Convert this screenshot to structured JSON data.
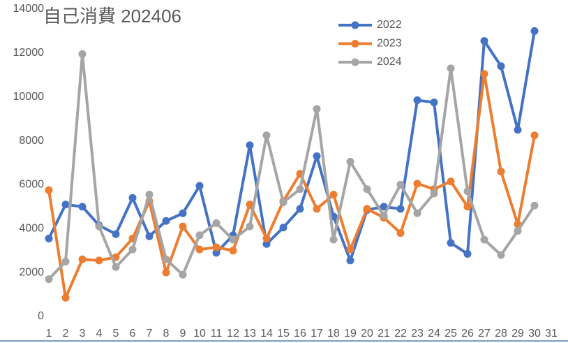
{
  "chart_data": {
    "type": "line",
    "title": "自己消費 202406",
    "categories": [
      "1",
      "2",
      "3",
      "4",
      "5",
      "6",
      "7",
      "8",
      "9",
      "10",
      "11",
      "12",
      "13",
      "14",
      "15",
      "16",
      "17",
      "18",
      "19",
      "20",
      "21",
      "22",
      "23",
      "24",
      "25",
      "26",
      "27",
      "28",
      "29",
      "30",
      "31"
    ],
    "series": [
      {
        "name": "2022",
        "color": "#4472c4",
        "values": [
          3550,
          5100,
          5000,
          4150,
          3750,
          5400,
          3650,
          4350,
          4700,
          5950,
          2900,
          3700,
          7800,
          3300,
          4050,
          4900,
          7300,
          4550,
          2550,
          4850,
          5000,
          4900,
          9850,
          9750,
          3350,
          2850,
          12550,
          11400,
          8500,
          13000,
          null
        ]
      },
      {
        "name": "2023",
        "color": "#ed7d31",
        "values": [
          5750,
          850,
          2600,
          2550,
          2700,
          3550,
          5250,
          2000,
          4100,
          3050,
          3150,
          3000,
          5100,
          3550,
          5250,
          6500,
          4900,
          5550,
          3050,
          4900,
          4500,
          3800,
          6050,
          5800,
          6150,
          5000,
          11050,
          6600,
          4200,
          8250,
          null
        ]
      },
      {
        "name": "2024",
        "color": "#a5a5a5",
        "values": [
          1700,
          2500,
          11950,
          4100,
          2250,
          3050,
          5550,
          2600,
          1900,
          3700,
          4250,
          3500,
          4100,
          8250,
          5200,
          5800,
          9450,
          3500,
          7050,
          5800,
          4600,
          6000,
          4700,
          5600,
          11300,
          5700,
          3500,
          2800,
          3900,
          5050,
          null
        ]
      }
    ],
    "ylim": [
      0,
      14000
    ],
    "yticks": [
      0,
      2000,
      4000,
      6000,
      8000,
      10000,
      12000,
      14000
    ],
    "legend": "top-right"
  }
}
